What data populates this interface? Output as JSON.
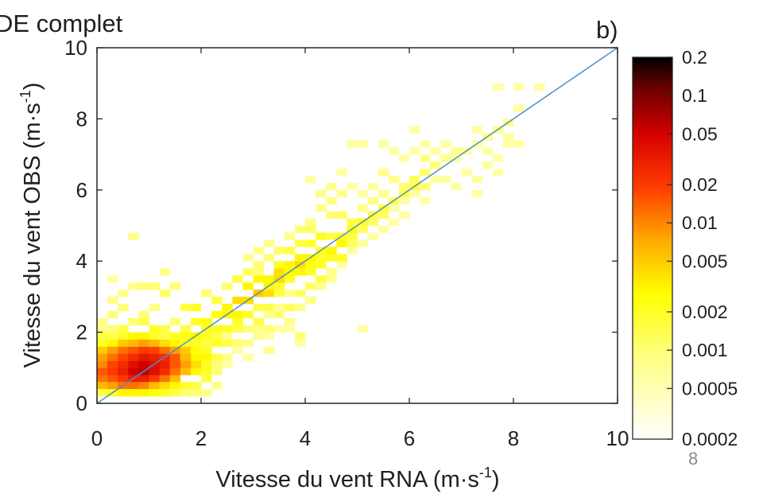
{
  "chart_data": {
    "type": "heatmap",
    "title": "DE complet",
    "panel_label": "b)",
    "xlabel": {
      "base": "Vitesse du vent RNA (m·s",
      "sup": "-1",
      "close": ")"
    },
    "ylabel": {
      "base": "Vitesse du vent OBS (m·s",
      "sup": "-1",
      "close": ")"
    },
    "xlim": [
      0,
      10
    ],
    "ylim": [
      0,
      10
    ],
    "xticks": [
      "0",
      "2",
      "4",
      "6",
      "8",
      "10"
    ],
    "yticks": [
      "0",
      "2",
      "4",
      "6",
      "8",
      "10"
    ],
    "bin_size": 0.2,
    "reference_line": {
      "from": [
        0,
        0
      ],
      "to": [
        10,
        10
      ],
      "color": "#4a90c8"
    },
    "colorbar": {
      "scale": "log",
      "range": [
        0.0002,
        0.2
      ],
      "ticks": [
        "0.2",
        "0.1",
        "0.05",
        "0.02",
        "0.01",
        "0.005",
        "0.002",
        "0.001",
        "0.0005",
        "0.0002"
      ],
      "colormap": "hot"
    },
    "page_number": "8",
    "cells": [
      [
        0.1,
        0.7,
        0.012
      ],
      [
        0.3,
        0.7,
        0.015
      ],
      [
        0.5,
        0.7,
        0.02
      ],
      [
        0.7,
        0.7,
        0.03
      ],
      [
        0.9,
        0.7,
        0.03
      ],
      [
        1.1,
        0.7,
        0.02
      ],
      [
        1.3,
        0.7,
        0.012
      ],
      [
        1.5,
        0.7,
        0.006
      ],
      [
        0.1,
        0.9,
        0.015
      ],
      [
        0.3,
        0.9,
        0.02
      ],
      [
        0.5,
        0.9,
        0.03
      ],
      [
        0.7,
        0.9,
        0.05
      ],
      [
        0.9,
        0.9,
        0.06
      ],
      [
        1.1,
        0.9,
        0.04
      ],
      [
        1.3,
        0.9,
        0.025
      ],
      [
        1.5,
        0.9,
        0.012
      ],
      [
        1.7,
        0.9,
        0.006
      ],
      [
        1.9,
        0.9,
        0.003
      ],
      [
        0.1,
        1.1,
        0.01
      ],
      [
        0.3,
        1.1,
        0.018
      ],
      [
        0.5,
        1.1,
        0.025
      ],
      [
        0.7,
        1.1,
        0.04
      ],
      [
        0.9,
        1.1,
        0.05
      ],
      [
        1.1,
        1.1,
        0.04
      ],
      [
        1.3,
        1.1,
        0.03
      ],
      [
        1.5,
        1.1,
        0.015
      ],
      [
        1.7,
        1.1,
        0.008
      ],
      [
        1.9,
        1.1,
        0.003
      ],
      [
        0.1,
        1.3,
        0.008
      ],
      [
        0.3,
        1.3,
        0.012
      ],
      [
        0.5,
        1.3,
        0.018
      ],
      [
        0.7,
        1.3,
        0.025
      ],
      [
        0.9,
        1.3,
        0.035
      ],
      [
        1.1,
        1.3,
        0.03
      ],
      [
        1.3,
        1.3,
        0.025
      ],
      [
        1.5,
        1.3,
        0.015
      ],
      [
        1.7,
        1.3,
        0.008
      ],
      [
        1.9,
        1.3,
        0.004
      ],
      [
        0.1,
        1.5,
        0.005
      ],
      [
        0.3,
        1.5,
        0.008
      ],
      [
        0.5,
        1.5,
        0.012
      ],
      [
        0.7,
        1.5,
        0.015
      ],
      [
        0.9,
        1.5,
        0.02
      ],
      [
        1.1,
        1.5,
        0.018
      ],
      [
        1.3,
        1.5,
        0.012
      ],
      [
        1.5,
        1.5,
        0.008
      ],
      [
        1.7,
        1.5,
        0.005
      ],
      [
        1.9,
        1.5,
        0.003
      ],
      [
        0.1,
        0.5,
        0.006
      ],
      [
        0.3,
        0.5,
        0.008
      ],
      [
        0.5,
        0.5,
        0.012
      ],
      [
        0.7,
        0.5,
        0.012
      ],
      [
        0.9,
        0.5,
        0.01
      ],
      [
        1.1,
        0.5,
        0.006
      ],
      [
        1.3,
        0.5,
        0.004
      ],
      [
        1.5,
        0.5,
        0.003
      ],
      [
        1.7,
        0.5,
        0.002
      ],
      [
        1.9,
        0.3,
        0.001
      ],
      [
        1.9,
        0.5,
        0.0015
      ],
      [
        2.1,
        0.7,
        0.0015
      ],
      [
        2.1,
        0.9,
        0.002
      ],
      [
        2.3,
        0.9,
        0.001
      ],
      [
        0.1,
        1.7,
        0.002
      ],
      [
        0.3,
        1.7,
        0.003
      ],
      [
        0.5,
        1.7,
        0.005
      ],
      [
        0.7,
        1.7,
        0.006
      ],
      [
        0.9,
        1.7,
        0.008
      ],
      [
        1.1,
        1.7,
        0.006
      ],
      [
        1.3,
        1.7,
        0.004
      ],
      [
        1.5,
        1.7,
        0.003
      ],
      [
        1.7,
        1.7,
        0.002
      ],
      [
        0.1,
        1.9,
        0.0015
      ],
      [
        0.3,
        1.9,
        0.0015
      ],
      [
        0.5,
        1.9,
        0.002
      ],
      [
        0.7,
        1.9,
        0.003
      ],
      [
        0.9,
        1.9,
        0.003
      ],
      [
        1.1,
        1.9,
        0.002
      ],
      [
        1.3,
        1.9,
        0.0015
      ],
      [
        1.5,
        1.9,
        0.002
      ],
      [
        1.7,
        1.9,
        0.0025
      ],
      [
        1.9,
        1.9,
        0.003
      ],
      [
        0.1,
        2.3,
        0.0008
      ],
      [
        0.3,
        2.1,
        0.001
      ],
      [
        0.5,
        2.1,
        0.0015
      ],
      [
        0.7,
        2.3,
        0.001
      ],
      [
        0.9,
        2.3,
        0.0015
      ],
      [
        1.1,
        2.1,
        0.002
      ],
      [
        1.3,
        2.1,
        0.0015
      ],
      [
        1.5,
        2.3,
        0.001
      ],
      [
        1.7,
        2.1,
        0.0015
      ],
      [
        2.1,
        2.1,
        0.002
      ],
      [
        2.3,
        2.1,
        0.002
      ],
      [
        0.3,
        2.9,
        0.0008
      ],
      [
        0.5,
        2.7,
        0.001
      ],
      [
        0.5,
        3.1,
        0.0008
      ],
      [
        0.9,
        2.5,
        0.001
      ],
      [
        1.1,
        2.7,
        0.0008
      ],
      [
        1.3,
        3.1,
        0.0012
      ],
      [
        1.5,
        3.3,
        0.001
      ],
      [
        1.7,
        2.7,
        0.0015
      ],
      [
        1.9,
        2.7,
        0.002
      ],
      [
        0.7,
        3.3,
        0.0008
      ],
      [
        0.3,
        3.5,
        0.0006
      ],
      [
        0.9,
        3.3,
        0.001
      ],
      [
        1.1,
        3.3,
        0.001
      ],
      [
        1.3,
        3.7,
        0.0008
      ],
      [
        0.7,
        4.7,
        0.0008
      ],
      [
        0.3,
        2.5,
        0.001
      ],
      [
        0.1,
        2.1,
        0.0008
      ],
      [
        1.9,
        1.3,
        0.003
      ],
      [
        2.1,
        1.3,
        0.003
      ],
      [
        2.1,
        1.1,
        0.002
      ],
      [
        2.3,
        1.3,
        0.0015
      ],
      [
        2.3,
        1.1,
        0.001
      ],
      [
        1.9,
        1.1,
        0.004
      ],
      [
        2.1,
        1.5,
        0.002
      ],
      [
        2.3,
        1.7,
        0.002
      ],
      [
        2.5,
        1.7,
        0.0015
      ],
      [
        2.5,
        2.1,
        0.002
      ],
      [
        2.5,
        2.5,
        0.003
      ],
      [
        2.7,
        2.5,
        0.003
      ],
      [
        2.3,
        2.5,
        0.0025
      ],
      [
        2.1,
        2.3,
        0.0025
      ],
      [
        1.9,
        2.3,
        0.002
      ],
      [
        2.7,
        2.3,
        0.002
      ],
      [
        2.9,
        2.5,
        0.002
      ],
      [
        3.1,
        2.3,
        0.0015
      ],
      [
        2.5,
        2.7,
        0.003
      ],
      [
        2.7,
        2.9,
        0.004
      ],
      [
        2.9,
        2.9,
        0.004
      ],
      [
        3.1,
        3.1,
        0.005
      ],
      [
        3.3,
        3.1,
        0.004
      ],
      [
        2.9,
        3.3,
        0.003
      ],
      [
        3.1,
        3.5,
        0.003
      ],
      [
        3.3,
        3.5,
        0.003
      ],
      [
        3.5,
        3.7,
        0.004
      ],
      [
        3.3,
        3.3,
        0.003
      ],
      [
        3.5,
        3.3,
        0.002
      ],
      [
        3.7,
        3.5,
        0.002
      ],
      [
        3.5,
        3.9,
        0.002
      ],
      [
        3.7,
        3.9,
        0.003
      ],
      [
        3.9,
        3.9,
        0.004
      ],
      [
        3.9,
        4.1,
        0.003
      ],
      [
        4.1,
        4.1,
        0.003
      ],
      [
        4.1,
        3.7,
        0.002
      ],
      [
        2.3,
        2.9,
        0.0015
      ],
      [
        2.1,
        3.1,
        0.001
      ],
      [
        2.5,
        3.3,
        0.001
      ],
      [
        2.7,
        3.5,
        0.0015
      ],
      [
        2.9,
        3.7,
        0.0012
      ],
      [
        3.1,
        3.7,
        0.001
      ],
      [
        2.7,
        2.1,
        0.0015
      ],
      [
        2.9,
        2.1,
        0.001
      ],
      [
        3.1,
        2.7,
        0.0015
      ],
      [
        3.3,
        2.7,
        0.0015
      ],
      [
        3.5,
        2.5,
        0.001
      ],
      [
        3.7,
        2.3,
        0.0008
      ],
      [
        3.3,
        2.1,
        0.001
      ],
      [
        2.3,
        1.9,
        0.0015
      ],
      [
        2.7,
        1.7,
        0.001
      ],
      [
        2.1,
        1.9,
        0.002
      ],
      [
        3.3,
        1.5,
        0.0008
      ],
      [
        3.9,
        1.9,
        0.001
      ],
      [
        3.7,
        2.7,
        0.0012
      ],
      [
        3.5,
        3.1,
        0.0015
      ],
      [
        3.9,
        3.1,
        0.0012
      ],
      [
        4.1,
        3.3,
        0.0012
      ],
      [
        4.3,
        3.5,
        0.0015
      ],
      [
        4.3,
        3.9,
        0.002
      ],
      [
        4.5,
        4.1,
        0.002
      ],
      [
        4.5,
        4.3,
        0.003
      ],
      [
        4.3,
        4.3,
        0.002
      ],
      [
        4.1,
        4.5,
        0.002
      ],
      [
        3.9,
        4.5,
        0.0015
      ],
      [
        3.7,
        4.3,
        0.0015
      ],
      [
        3.5,
        4.3,
        0.0012
      ],
      [
        3.3,
        4.1,
        0.001
      ],
      [
        3.1,
        3.9,
        0.001
      ],
      [
        4.7,
        4.5,
        0.003
      ],
      [
        4.7,
        4.7,
        0.002
      ],
      [
        4.5,
        4.7,
        0.0015
      ],
      [
        4.3,
        4.7,
        0.002
      ],
      [
        4.1,
        4.9,
        0.0012
      ],
      [
        3.9,
        4.9,
        0.001
      ],
      [
        4.9,
        4.7,
        0.0015
      ],
      [
        4.9,
        4.9,
        0.002
      ],
      [
        5.1,
        5.1,
        0.002
      ],
      [
        4.9,
        5.1,
        0.0015
      ],
      [
        4.7,
        5.3,
        0.0012
      ],
      [
        4.5,
        5.3,
        0.001
      ],
      [
        5.1,
        4.9,
        0.0012
      ],
      [
        5.3,
        5.1,
        0.0012
      ],
      [
        5.3,
        5.3,
        0.0015
      ],
      [
        5.5,
        5.3,
        0.0012
      ],
      [
        5.5,
        5.5,
        0.0015
      ],
      [
        5.7,
        5.7,
        0.0012
      ],
      [
        5.9,
        5.9,
        0.0015
      ],
      [
        6.1,
        6.1,
        0.0015
      ],
      [
        5.9,
        6.1,
        0.001
      ],
      [
        6.1,
        6.3,
        0.0012
      ],
      [
        6.3,
        6.1,
        0.001
      ],
      [
        5.7,
        6.3,
        0.0008
      ],
      [
        5.5,
        6.5,
        0.0008
      ],
      [
        6.3,
        6.5,
        0.001
      ],
      [
        6.5,
        6.7,
        0.001
      ],
      [
        6.3,
        6.9,
        0.0008
      ],
      [
        6.7,
        6.9,
        0.0008
      ],
      [
        6.9,
        7.1,
        0.0008
      ],
      [
        3.1,
        4.3,
        0.0008
      ],
      [
        2.9,
        4.1,
        0.0008
      ],
      [
        3.3,
        4.5,
        0.0008
      ],
      [
        3.7,
        4.7,
        0.0008
      ],
      [
        4.1,
        5.1,
        0.0008
      ],
      [
        4.3,
        5.5,
        0.0008
      ],
      [
        4.5,
        5.7,
        0.0008
      ],
      [
        4.3,
        5.9,
        0.0008
      ],
      [
        4.1,
        6.3,
        0.0006
      ],
      [
        4.5,
        6.1,
        0.0008
      ],
      [
        4.7,
        5.9,
        0.0008
      ],
      [
        5.1,
        5.5,
        0.0008
      ],
      [
        5.3,
        5.7,
        0.0008
      ],
      [
        5.5,
        5.9,
        0.0008
      ],
      [
        5.7,
        5.5,
        0.0006
      ],
      [
        5.3,
        6.1,
        0.0006
      ],
      [
        5.9,
        5.7,
        0.0006
      ],
      [
        5.1,
        5.9,
        0.0006
      ],
      [
        4.9,
        6.1,
        0.0006
      ],
      [
        4.7,
        6.5,
        0.0006
      ],
      [
        4.9,
        7.3,
        0.0006
      ],
      [
        5.1,
        7.3,
        0.0006
      ],
      [
        5.5,
        7.3,
        0.0006
      ],
      [
        5.7,
        7.1,
        0.0006
      ],
      [
        5.9,
        6.9,
        0.0006
      ],
      [
        6.1,
        7.1,
        0.0006
      ],
      [
        6.3,
        7.3,
        0.0006
      ],
      [
        6.1,
        7.7,
        0.0006
      ],
      [
        6.5,
        7.1,
        0.0006
      ],
      [
        6.7,
        7.3,
        0.0006
      ],
      [
        6.9,
        6.9,
        0.0006
      ],
      [
        7.1,
        6.5,
        0.0006
      ],
      [
        7.1,
        7.1,
        0.0006
      ],
      [
        7.3,
        7.3,
        0.0006
      ],
      [
        7.3,
        7.7,
        0.0006
      ],
      [
        7.5,
        7.5,
        0.0008
      ],
      [
        7.5,
        7.1,
        0.0006
      ],
      [
        7.7,
        7.7,
        0.0008
      ],
      [
        7.9,
        7.9,
        0.0008
      ],
      [
        7.7,
        6.9,
        0.0006
      ],
      [
        8.1,
        7.3,
        0.0006
      ],
      [
        7.3,
        6.3,
        0.0006
      ],
      [
        7.5,
        6.7,
        0.0006
      ],
      [
        7.7,
        6.5,
        0.0006
      ],
      [
        7.9,
        7.3,
        0.0006
      ],
      [
        7.7,
        8.9,
        0.0006
      ],
      [
        8.1,
        8.9,
        0.0006
      ],
      [
        8.5,
        8.9,
        0.0006
      ],
      [
        8.1,
        8.3,
        0.0006
      ],
      [
        7.9,
        7.5,
        0.0006
      ],
      [
        7.3,
        5.9,
        0.0006
      ],
      [
        6.9,
        6.1,
        0.0006
      ],
      [
        6.7,
        6.3,
        0.0006
      ],
      [
        6.5,
        6.3,
        0.0006
      ],
      [
        6.3,
        5.7,
        0.0006
      ],
      [
        6.1,
        5.9,
        0.0006
      ],
      [
        5.9,
        5.3,
        0.0006
      ],
      [
        5.7,
        5.1,
        0.0006
      ],
      [
        5.5,
        4.9,
        0.0006
      ],
      [
        5.3,
        4.7,
        0.0006
      ],
      [
        5.1,
        4.5,
        0.0006
      ],
      [
        4.9,
        4.3,
        0.0006
      ],
      [
        4.7,
        3.9,
        0.0006
      ],
      [
        4.5,
        3.7,
        0.0008
      ],
      [
        4.3,
        3.3,
        0.0008
      ],
      [
        4.5,
        3.5,
        0.0008
      ],
      [
        4.1,
        2.9,
        0.0008
      ],
      [
        3.9,
        2.7,
        0.0008
      ],
      [
        3.7,
        3.1,
        0.0008
      ],
      [
        3.5,
        2.7,
        0.0008
      ],
      [
        3.3,
        2.5,
        0.0008
      ],
      [
        3.1,
        2.1,
        0.0008
      ],
      [
        5.1,
        2.1,
        0.0006
      ],
      [
        3.9,
        1.7,
        0.0006
      ],
      [
        2.5,
        1.9,
        0.0008
      ],
      [
        2.7,
        1.5,
        0.0006
      ],
      [
        2.5,
        1.3,
        0.0008
      ],
      [
        2.5,
        1.1,
        0.0006
      ],
      [
        2.3,
        0.5,
        0.0008
      ],
      [
        2.1,
        0.3,
        0.0008
      ],
      [
        2.9,
        1.3,
        0.0006
      ],
      [
        1.5,
        0.3,
        0.0015
      ],
      [
        1.3,
        0.3,
        0.002
      ],
      [
        1.1,
        0.3,
        0.0025
      ],
      [
        0.9,
        0.3,
        0.003
      ],
      [
        0.7,
        0.3,
        0.003
      ],
      [
        0.5,
        0.3,
        0.003
      ],
      [
        0.3,
        0.3,
        0.002
      ],
      [
        0.1,
        0.3,
        0.0015
      ],
      [
        1.7,
        0.3,
        0.001
      ],
      [
        2.9,
        1.7,
        0.0008
      ],
      [
        3.1,
        1.9,
        0.0008
      ],
      [
        3.3,
        1.9,
        0.0006
      ],
      [
        3.5,
        2.1,
        0.0006
      ],
      [
        3.7,
        2.1,
        0.0006
      ],
      [
        1.9,
        1.7,
        0.002
      ],
      [
        2.1,
        1.7,
        0.0015
      ],
      [
        1.9,
        1.5,
        0.0025
      ],
      [
        1.7,
        1.3,
        0.006
      ],
      [
        1.7,
        1.1,
        0.008
      ],
      [
        1.5,
        1.1,
        0.015
      ],
      [
        4.7,
        4.1,
        0.002
      ],
      [
        4.9,
        4.5,
        0.0012
      ],
      [
        4.1,
        3.9,
        0.0025
      ],
      [
        4.3,
        4.1,
        0.002
      ],
      [
        3.9,
        3.7,
        0.003
      ],
      [
        3.7,
        3.7,
        0.003
      ],
      [
        3.5,
        3.5,
        0.004
      ]
    ]
  }
}
